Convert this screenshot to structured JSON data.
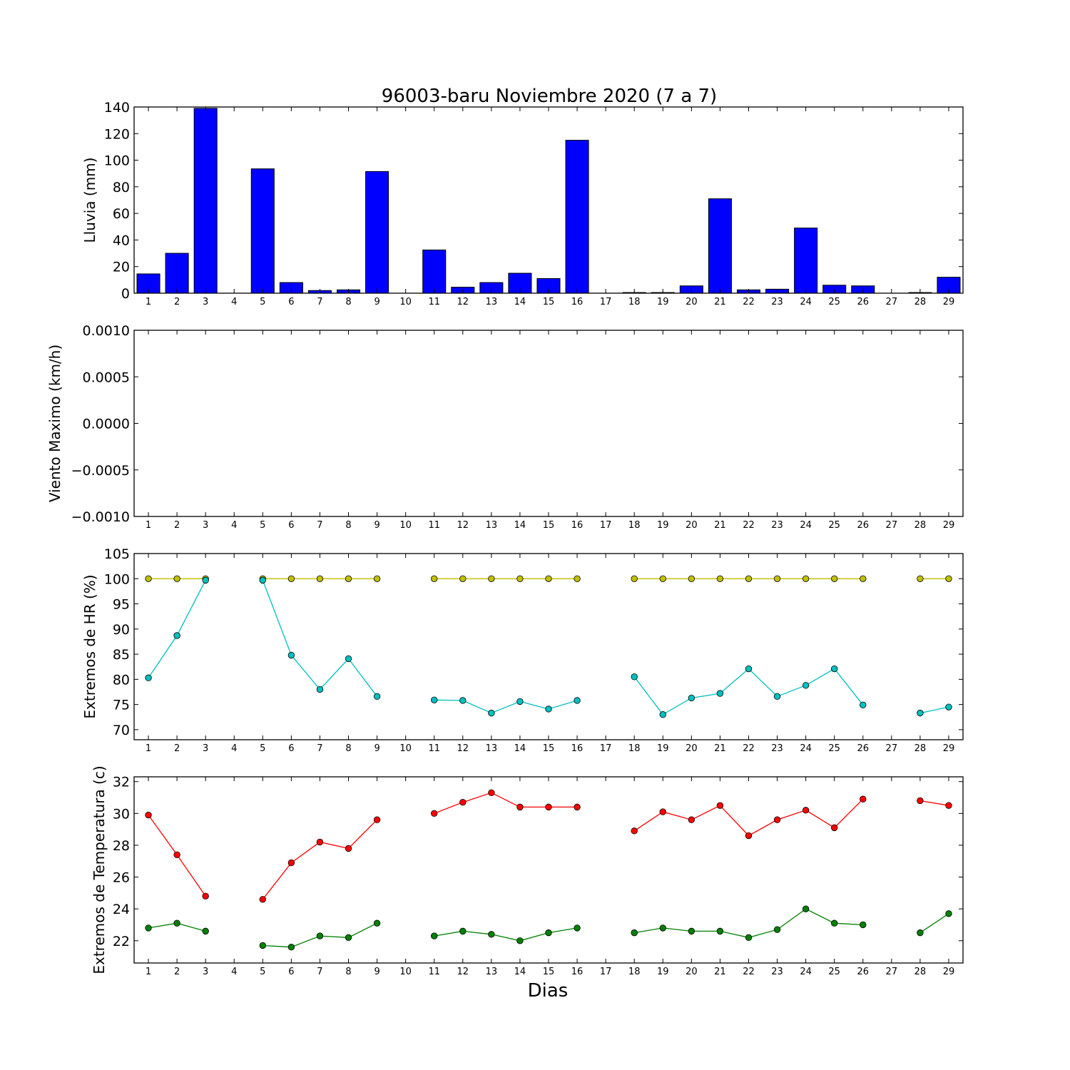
{
  "chart_data": [
    {
      "type": "bar",
      "title": "96003-baru Noviembre 2020  (7 a 7)",
      "ylabel": "Lluvia (mm)",
      "xlabel": "",
      "categories": [
        "1",
        "2",
        "3",
        "4",
        "5",
        "6",
        "7",
        "8",
        "9",
        "10",
        "11",
        "12",
        "13",
        "14",
        "15",
        "16",
        "17",
        "18",
        "19",
        "20",
        "21",
        "22",
        "23",
        "24",
        "25",
        "26",
        "27",
        "28",
        "29"
      ],
      "values": [
        14.5,
        30,
        139,
        0,
        93.5,
        8,
        2,
        2.5,
        91.5,
        0,
        32.5,
        4.5,
        8,
        15,
        11,
        115,
        0,
        0.5,
        0.5,
        5.5,
        71,
        2.5,
        3,
        49,
        6,
        5.5,
        0,
        0.5,
        12
      ],
      "ylim": [
        0,
        140
      ],
      "yticks": [
        "0",
        "20",
        "40",
        "60",
        "80",
        "100",
        "120",
        "140"
      ],
      "color": "#0000ff"
    },
    {
      "type": "line",
      "ylabel": "Viento Maximo (km/h)",
      "categories": [
        "1",
        "2",
        "3",
        "4",
        "5",
        "6",
        "7",
        "8",
        "9",
        "10",
        "11",
        "12",
        "13",
        "14",
        "15",
        "16",
        "17",
        "18",
        "19",
        "20",
        "21",
        "22",
        "23",
        "24",
        "25",
        "26",
        "27",
        "28",
        "29"
      ],
      "series": [],
      "ylim": [
        -0.001,
        0.001
      ],
      "yticks": [
        "−0.0010",
        "−0.0005",
        "0.0000",
        "0.0005",
        "0.0010"
      ]
    },
    {
      "type": "line",
      "ylabel": "Extremos de HR (%)",
      "categories": [
        "1",
        "2",
        "3",
        "4",
        "5",
        "6",
        "7",
        "8",
        "9",
        "10",
        "11",
        "12",
        "13",
        "14",
        "15",
        "16",
        "17",
        "18",
        "19",
        "20",
        "21",
        "22",
        "23",
        "24",
        "25",
        "26",
        "27",
        "28",
        "29"
      ],
      "series": [
        {
          "color": "#bfbf00",
          "values": [
            100,
            100,
            100,
            null,
            100,
            100,
            100,
            100,
            100,
            null,
            100,
            100,
            100,
            100,
            100,
            100,
            null,
            100,
            100,
            100,
            100,
            100,
            100,
            100,
            100,
            100,
            null,
            100,
            100
          ]
        },
        {
          "color": "#00bfbf",
          "values": [
            80.3,
            88.7,
            99.7,
            null,
            99.7,
            84.8,
            78,
            84.1,
            76.6,
            null,
            75.9,
            75.8,
            73.3,
            75.6,
            74.1,
            75.8,
            null,
            80.5,
            73,
            76.3,
            77.2,
            82.1,
            76.6,
            78.8,
            82.1,
            74.9,
            null,
            73.3,
            74.5
          ]
        }
      ],
      "ylim": [
        68,
        105
      ],
      "yticks": [
        "70",
        "75",
        "80",
        "85",
        "90",
        "95",
        "100",
        "105"
      ]
    },
    {
      "type": "line",
      "ylabel": "Extremos de Temperatura (c)",
      "xlabel": "Dias",
      "categories": [
        "1",
        "2",
        "3",
        "4",
        "5",
        "6",
        "7",
        "8",
        "9",
        "10",
        "11",
        "12",
        "13",
        "14",
        "15",
        "16",
        "17",
        "18",
        "19",
        "20",
        "21",
        "22",
        "23",
        "24",
        "25",
        "26",
        "27",
        "28",
        "29"
      ],
      "series": [
        {
          "color": "#ff0000",
          "values": [
            29.9,
            27.4,
            24.8,
            null,
            24.6,
            26.9,
            28.2,
            27.8,
            29.6,
            null,
            30,
            30.7,
            31.3,
            30.4,
            30.4,
            30.4,
            null,
            28.9,
            30.1,
            29.6,
            30.5,
            28.6,
            29.6,
            30.2,
            29.1,
            30.9,
            null,
            30.8,
            30.5
          ]
        },
        {
          "color": "#008000",
          "values": [
            22.8,
            23.1,
            22.6,
            null,
            21.7,
            21.6,
            22.3,
            22.2,
            23.1,
            null,
            22.3,
            22.6,
            22.4,
            22,
            22.5,
            22.8,
            null,
            22.5,
            22.8,
            22.6,
            22.6,
            22.2,
            22.7,
            24,
            23.1,
            23,
            null,
            22.5,
            23.7
          ]
        }
      ],
      "ylim": [
        20.6,
        32.3
      ],
      "yticks": [
        "22",
        "24",
        "26",
        "28",
        "30",
        "32"
      ]
    }
  ]
}
